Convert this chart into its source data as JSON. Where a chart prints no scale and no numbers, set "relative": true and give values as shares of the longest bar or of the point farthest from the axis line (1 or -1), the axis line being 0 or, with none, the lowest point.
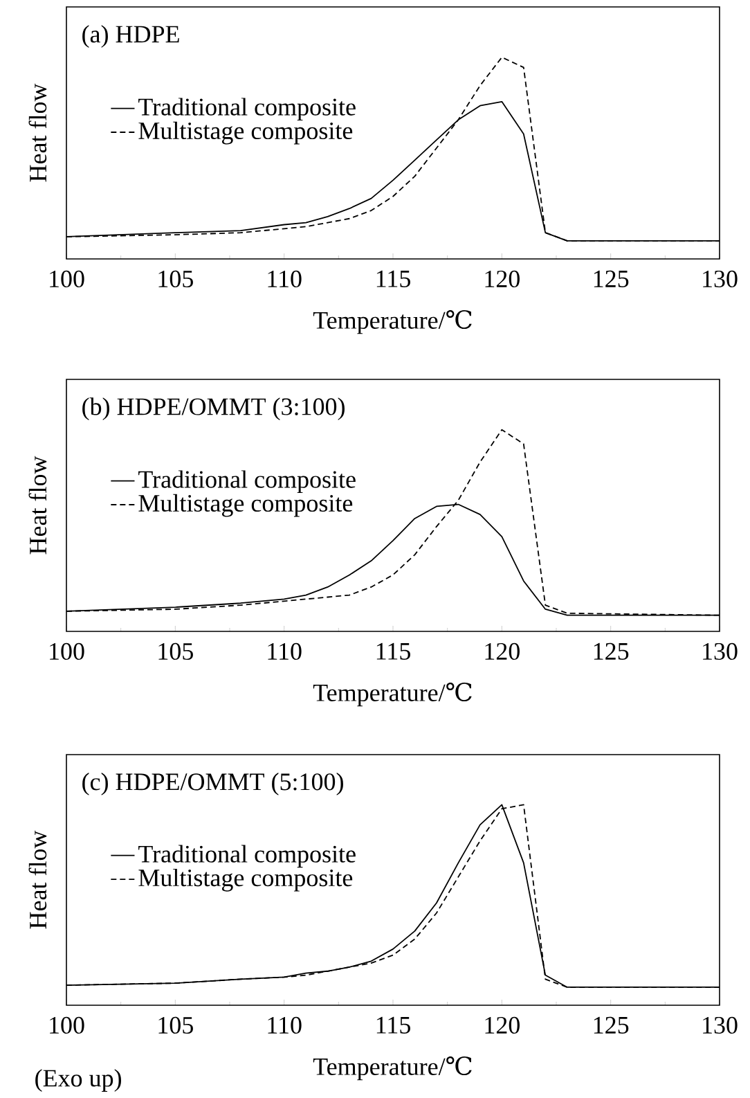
{
  "chart_data": [
    {
      "type": "line",
      "title": "(a) HDPE",
      "xlabel": "Temperature/℃",
      "ylabel": "Heat flow",
      "relative": true,
      "legend": "left",
      "xlim": [
        100,
        130
      ],
      "xticks": [
        100,
        105,
        110,
        115,
        120,
        125,
        130
      ],
      "x": [
        100,
        105,
        108,
        110,
        111,
        112,
        113,
        114,
        115,
        116,
        117,
        118,
        119,
        120,
        121,
        122,
        123,
        130
      ],
      "series": [
        {
          "name": "Traditional composite",
          "color": "#000000",
          "line_style": "solid",
          "values": [
            0.11,
            0.13,
            0.14,
            0.17,
            0.18,
            0.21,
            0.25,
            0.3,
            0.39,
            0.49,
            0.59,
            0.69,
            0.76,
            0.78,
            0.62,
            0.13,
            0.09,
            0.09
          ]
        },
        {
          "name": "Multistage composite",
          "color": "#000000",
          "line_style": "dashed",
          "values": [
            0.11,
            0.12,
            0.13,
            0.15,
            0.16,
            0.18,
            0.2,
            0.24,
            0.31,
            0.41,
            0.55,
            0.69,
            0.86,
            1,
            0.95,
            0.13,
            0.09,
            0.09
          ]
        }
      ]
    },
    {
      "type": "line",
      "title": "(b) HDPE/OMMT (3:100)",
      "xlabel": "Temperature/℃",
      "ylabel": "Heat flow",
      "relative": true,
      "legend": "left",
      "xlim": [
        100,
        130
      ],
      "xticks": [
        100,
        105,
        110,
        115,
        120,
        125,
        130
      ],
      "x": [
        100,
        105,
        108,
        110,
        111,
        112,
        113,
        114,
        115,
        116,
        117,
        118,
        119,
        120,
        121,
        122,
        123,
        130
      ],
      "series": [
        {
          "name": "Traditional composite",
          "color": "#000000",
          "line_style": "solid",
          "values": [
            0.1,
            0.12,
            0.14,
            0.16,
            0.18,
            0.22,
            0.28,
            0.35,
            0.45,
            0.56,
            0.62,
            0.63,
            0.58,
            0.47,
            0.25,
            0.11,
            0.08,
            0.08
          ]
        },
        {
          "name": "Multistage composite",
          "color": "#000000",
          "line_style": "dashed",
          "values": [
            0.1,
            0.11,
            0.13,
            0.15,
            0.16,
            0.17,
            0.18,
            0.22,
            0.28,
            0.38,
            0.52,
            0.65,
            0.84,
            1,
            0.93,
            0.13,
            0.09,
            0.08
          ]
        }
      ]
    },
    {
      "type": "line",
      "title": "(c) HDPE/OMMT (5:100)",
      "xlabel": "Temperature/℃",
      "ylabel": "Heat flow",
      "relative": true,
      "legend": "left",
      "xlim": [
        100,
        130
      ],
      "xticks": [
        100,
        105,
        110,
        115,
        120,
        125,
        130
      ],
      "annotations": [
        "(Exo up)"
      ],
      "x": [
        100,
        105,
        108,
        110,
        111,
        112,
        113,
        114,
        115,
        116,
        117,
        118,
        119,
        120,
        121,
        122,
        123,
        130
      ],
      "series": [
        {
          "name": "Traditional composite",
          "color": "#000000",
          "line_style": "solid",
          "values": [
            0.1,
            0.11,
            0.13,
            0.14,
            0.16,
            0.17,
            0.19,
            0.22,
            0.28,
            0.37,
            0.51,
            0.71,
            0.9,
            1,
            0.71,
            0.15,
            0.09,
            0.09
          ]
        },
        {
          "name": "Multistage composite",
          "color": "#000000",
          "line_style": "dashed",
          "values": [
            0.1,
            0.11,
            0.13,
            0.14,
            0.15,
            0.17,
            0.19,
            0.21,
            0.25,
            0.33,
            0.46,
            0.64,
            0.82,
            0.98,
            1,
            0.13,
            0.09,
            0.09
          ]
        }
      ]
    }
  ]
}
